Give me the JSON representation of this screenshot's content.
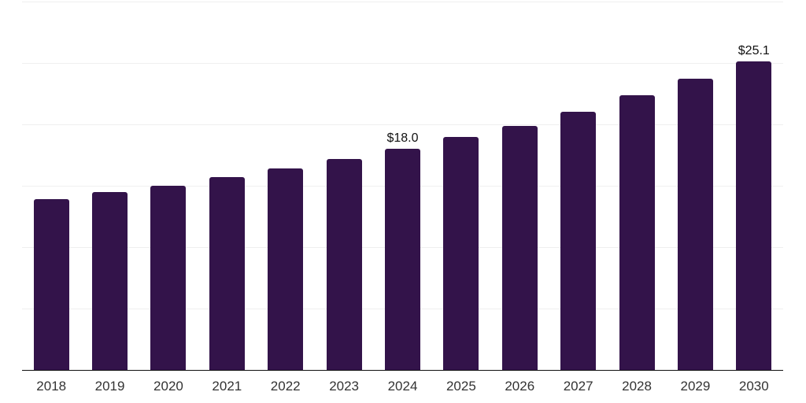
{
  "chart_data": {
    "type": "bar",
    "title": "",
    "xlabel": "",
    "ylabel": "",
    "categories": [
      "2018",
      "2019",
      "2020",
      "2021",
      "2022",
      "2023",
      "2024",
      "2025",
      "2026",
      "2027",
      "2028",
      "2029",
      "2030"
    ],
    "values": [
      13.9,
      14.5,
      15.0,
      15.7,
      16.4,
      17.2,
      18.0,
      19.0,
      19.9,
      21.0,
      22.4,
      23.7,
      25.1
    ],
    "data_labels": [
      "",
      "",
      "",
      "",
      "",
      "",
      "$18.0",
      "",
      "",
      "",
      "",
      "",
      "$25.1"
    ],
    "ylim": [
      0,
      30
    ],
    "gridline_step": 5,
    "grid": true,
    "legend_position": "none",
    "colors": {
      "bar": "#33134a",
      "axis_line": "#111111",
      "gridline": "#efefef",
      "tick_label": "#333333",
      "data_label": "#111111",
      "background": "#ffffff"
    }
  }
}
